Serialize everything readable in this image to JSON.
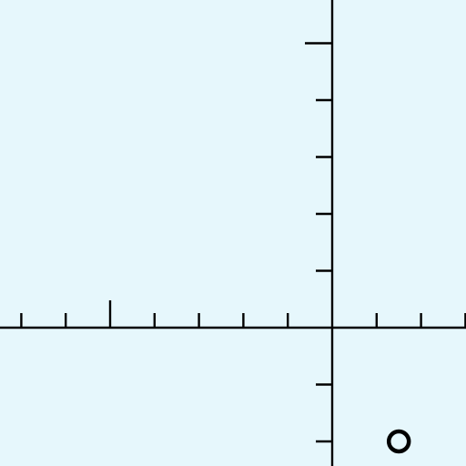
{
  "colors": {
    "background": "#e6f7fc",
    "ink": "#000000"
  },
  "diagram": {
    "kind": "coordinate-axes",
    "x_axis": {
      "ticks_left_of_origin": 7,
      "ticks_right_of_origin": 3,
      "long_tick_index": -5
    },
    "y_axis": {
      "ticks_above_origin": 5,
      "ticks_below_origin": 2,
      "long_tick_index": 5
    },
    "marker": {
      "shape": "hollow-circle",
      "x": 1.5,
      "y": -2
    }
  }
}
